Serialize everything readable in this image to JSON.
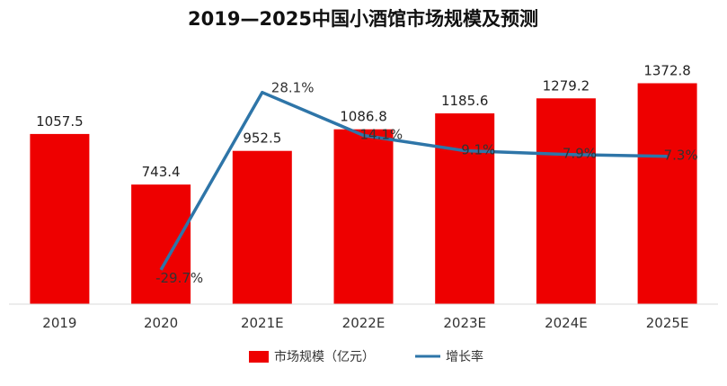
{
  "chart_data": {
    "type": "bar",
    "title": "2019—2025中国小酒馆市场规模及预测",
    "categories": [
      "2019",
      "2020",
      "2021E",
      "2022E",
      "2023E",
      "2024E",
      "2025E"
    ],
    "series": [
      {
        "name": "市场规模（亿元）",
        "type": "bar",
        "color": "#ee0000",
        "values": [
          1057.5,
          743.4,
          952.5,
          1086.8,
          1185.6,
          1279.2,
          1372.8
        ],
        "labels": [
          "1057.5",
          "743.4",
          "952.5",
          "1086.8",
          "1185.6",
          "1279.2",
          "1372.8"
        ]
      },
      {
        "name": "增长率",
        "type": "line",
        "color": "#2e75a8",
        "values": [
          null,
          -29.7,
          28.1,
          14.1,
          9.1,
          7.9,
          7.3
        ],
        "labels": [
          "",
          "-29.7%",
          "28.1%",
          "14.1%",
          "9.1%",
          "7.9%",
          "7.3%"
        ]
      }
    ],
    "axes": {
      "bar_ylim": [
        0,
        1450
      ],
      "line_ylim": [
        -35,
        33
      ]
    },
    "grid": false,
    "legend_position": "bottom"
  }
}
